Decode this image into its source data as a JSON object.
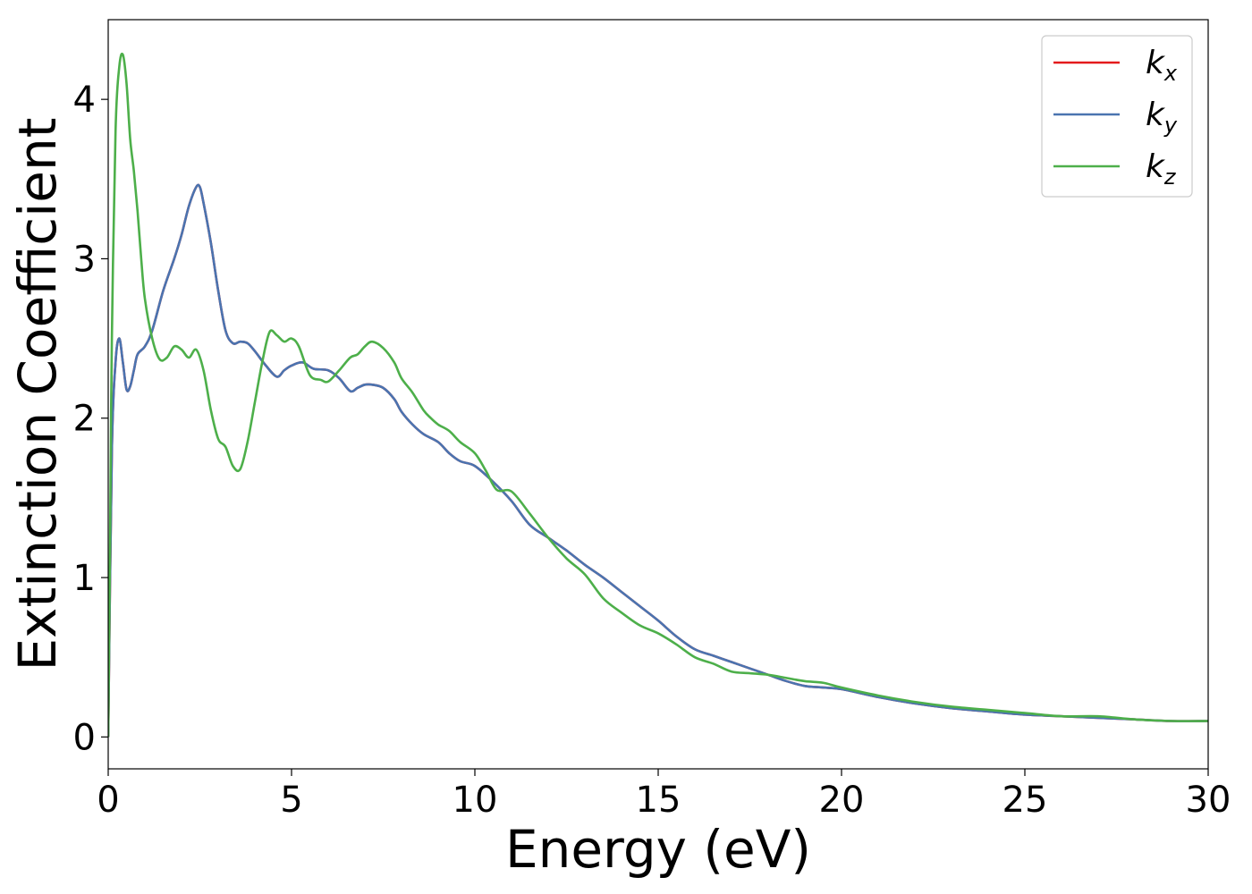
{
  "chart_data": {
    "type": "line",
    "title": "",
    "xlabel": "Energy (eV)",
    "ylabel": "Extinction Coefficient",
    "xlim": [
      0,
      30
    ],
    "ylim": [
      -0.2,
      4.5
    ],
    "xticks": [
      0,
      5,
      10,
      15,
      20,
      25,
      30
    ],
    "yticks": [
      0,
      1,
      2,
      3,
      4
    ],
    "xtick_labels": [
      "0",
      "5",
      "10",
      "15",
      "20",
      "25",
      "30"
    ],
    "ytick_labels": [
      "0",
      "1",
      "2",
      "3",
      "4"
    ],
    "grid": false,
    "legend_position": "top-right",
    "series": [
      {
        "name": "k_x",
        "legend_main": "k",
        "legend_sub": "x",
        "color": "#e41a1c",
        "x": [
          0,
          0.1,
          0.2,
          0.3,
          0.4,
          0.5,
          0.6,
          0.7,
          0.8,
          1.0,
          1.2,
          1.5,
          1.8,
          2.0,
          2.2,
          2.4,
          2.5,
          2.6,
          2.8,
          3.0,
          3.2,
          3.4,
          3.6,
          3.8,
          4.0,
          4.3,
          4.6,
          4.8,
          5.0,
          5.3,
          5.6,
          6.0,
          6.3,
          6.6,
          6.8,
          7.0,
          7.2,
          7.5,
          7.8,
          8.0,
          8.3,
          8.6,
          9.0,
          9.3,
          9.6,
          10.0,
          10.5,
          11.0,
          11.5,
          12.0,
          12.5,
          13.0,
          13.5,
          14.0,
          14.5,
          15.0,
          15.5,
          16.0,
          16.5,
          17.0,
          17.5,
          18.0,
          18.5,
          19.0,
          19.5,
          20.0,
          21.0,
          22.0,
          23.0,
          24.0,
          25.0,
          26.0,
          27.0,
          28.0,
          29.0,
          30.0
        ],
        "y": [
          0,
          1.8,
          2.35,
          2.5,
          2.35,
          2.18,
          2.2,
          2.3,
          2.4,
          2.45,
          2.55,
          2.8,
          3.0,
          3.15,
          3.33,
          3.45,
          3.45,
          3.35,
          3.1,
          2.8,
          2.55,
          2.47,
          2.48,
          2.47,
          2.42,
          2.33,
          2.26,
          2.3,
          2.33,
          2.35,
          2.31,
          2.3,
          2.25,
          2.17,
          2.19,
          2.21,
          2.21,
          2.19,
          2.12,
          2.04,
          1.96,
          1.9,
          1.85,
          1.78,
          1.73,
          1.7,
          1.6,
          1.48,
          1.33,
          1.25,
          1.17,
          1.08,
          1.0,
          0.91,
          0.82,
          0.73,
          0.63,
          0.55,
          0.51,
          0.47,
          0.43,
          0.39,
          0.35,
          0.32,
          0.31,
          0.3,
          0.25,
          0.21,
          0.18,
          0.16,
          0.14,
          0.13,
          0.12,
          0.11,
          0.1,
          0.1
        ]
      },
      {
        "name": "k_y",
        "legend_main": "k",
        "legend_sub": "y",
        "color": "#4a74b0",
        "x": [
          0,
          0.1,
          0.2,
          0.3,
          0.4,
          0.5,
          0.6,
          0.7,
          0.8,
          1.0,
          1.2,
          1.5,
          1.8,
          2.0,
          2.2,
          2.4,
          2.5,
          2.6,
          2.8,
          3.0,
          3.2,
          3.4,
          3.6,
          3.8,
          4.0,
          4.3,
          4.6,
          4.8,
          5.0,
          5.3,
          5.6,
          6.0,
          6.3,
          6.6,
          6.8,
          7.0,
          7.2,
          7.5,
          7.8,
          8.0,
          8.3,
          8.6,
          9.0,
          9.3,
          9.6,
          10.0,
          10.5,
          11.0,
          11.5,
          12.0,
          12.5,
          13.0,
          13.5,
          14.0,
          14.5,
          15.0,
          15.5,
          16.0,
          16.5,
          17.0,
          17.5,
          18.0,
          18.5,
          19.0,
          19.5,
          20.0,
          21.0,
          22.0,
          23.0,
          24.0,
          25.0,
          26.0,
          27.0,
          28.0,
          29.0,
          30.0
        ],
        "y": [
          0,
          1.8,
          2.35,
          2.5,
          2.35,
          2.18,
          2.2,
          2.3,
          2.4,
          2.45,
          2.55,
          2.8,
          3.0,
          3.15,
          3.33,
          3.45,
          3.45,
          3.35,
          3.1,
          2.8,
          2.55,
          2.47,
          2.48,
          2.47,
          2.42,
          2.33,
          2.26,
          2.3,
          2.33,
          2.35,
          2.31,
          2.3,
          2.25,
          2.17,
          2.19,
          2.21,
          2.21,
          2.19,
          2.12,
          2.04,
          1.96,
          1.9,
          1.85,
          1.78,
          1.73,
          1.7,
          1.6,
          1.48,
          1.33,
          1.25,
          1.17,
          1.08,
          1.0,
          0.91,
          0.82,
          0.73,
          0.63,
          0.55,
          0.51,
          0.47,
          0.43,
          0.39,
          0.35,
          0.32,
          0.31,
          0.3,
          0.25,
          0.21,
          0.18,
          0.16,
          0.14,
          0.13,
          0.12,
          0.11,
          0.1,
          0.1
        ]
      },
      {
        "name": "k_z",
        "legend_main": "k",
        "legend_sub": "z",
        "color": "#4daf4a",
        "x": [
          0,
          0.05,
          0.1,
          0.2,
          0.3,
          0.4,
          0.5,
          0.6,
          0.7,
          0.8,
          0.9,
          1.0,
          1.2,
          1.4,
          1.6,
          1.8,
          2.0,
          2.2,
          2.4,
          2.6,
          2.8,
          3.0,
          3.2,
          3.4,
          3.6,
          3.8,
          4.0,
          4.2,
          4.4,
          4.6,
          4.8,
          5.0,
          5.2,
          5.5,
          5.8,
          6.0,
          6.3,
          6.6,
          6.8,
          7.0,
          7.2,
          7.5,
          7.8,
          8.0,
          8.3,
          8.6,
          8.8,
          9.0,
          9.3,
          9.6,
          10.0,
          10.3,
          10.6,
          11.0,
          11.5,
          12.0,
          12.5,
          13.0,
          13.5,
          14.0,
          14.5,
          15.0,
          15.5,
          16.0,
          16.5,
          17.0,
          17.5,
          18.0,
          18.5,
          19.0,
          19.5,
          20.0,
          21.0,
          22.0,
          23.0,
          24.0,
          25.0,
          26.0,
          27.0,
          28.0,
          29.0,
          30.0
        ],
        "y": [
          0,
          1.2,
          2.5,
          3.8,
          4.2,
          4.28,
          4.1,
          3.75,
          3.55,
          3.3,
          3.0,
          2.75,
          2.5,
          2.37,
          2.38,
          2.45,
          2.43,
          2.38,
          2.43,
          2.3,
          2.05,
          1.87,
          1.82,
          1.7,
          1.68,
          1.85,
          2.1,
          2.35,
          2.54,
          2.52,
          2.48,
          2.5,
          2.45,
          2.27,
          2.24,
          2.23,
          2.3,
          2.38,
          2.4,
          2.45,
          2.48,
          2.44,
          2.35,
          2.25,
          2.16,
          2.05,
          2.0,
          1.96,
          1.92,
          1.85,
          1.78,
          1.67,
          1.55,
          1.54,
          1.4,
          1.25,
          1.12,
          1.02,
          0.87,
          0.78,
          0.7,
          0.65,
          0.58,
          0.5,
          0.46,
          0.41,
          0.4,
          0.39,
          0.37,
          0.35,
          0.34,
          0.31,
          0.26,
          0.22,
          0.19,
          0.17,
          0.15,
          0.13,
          0.13,
          0.11,
          0.1,
          0.1
        ]
      }
    ]
  }
}
